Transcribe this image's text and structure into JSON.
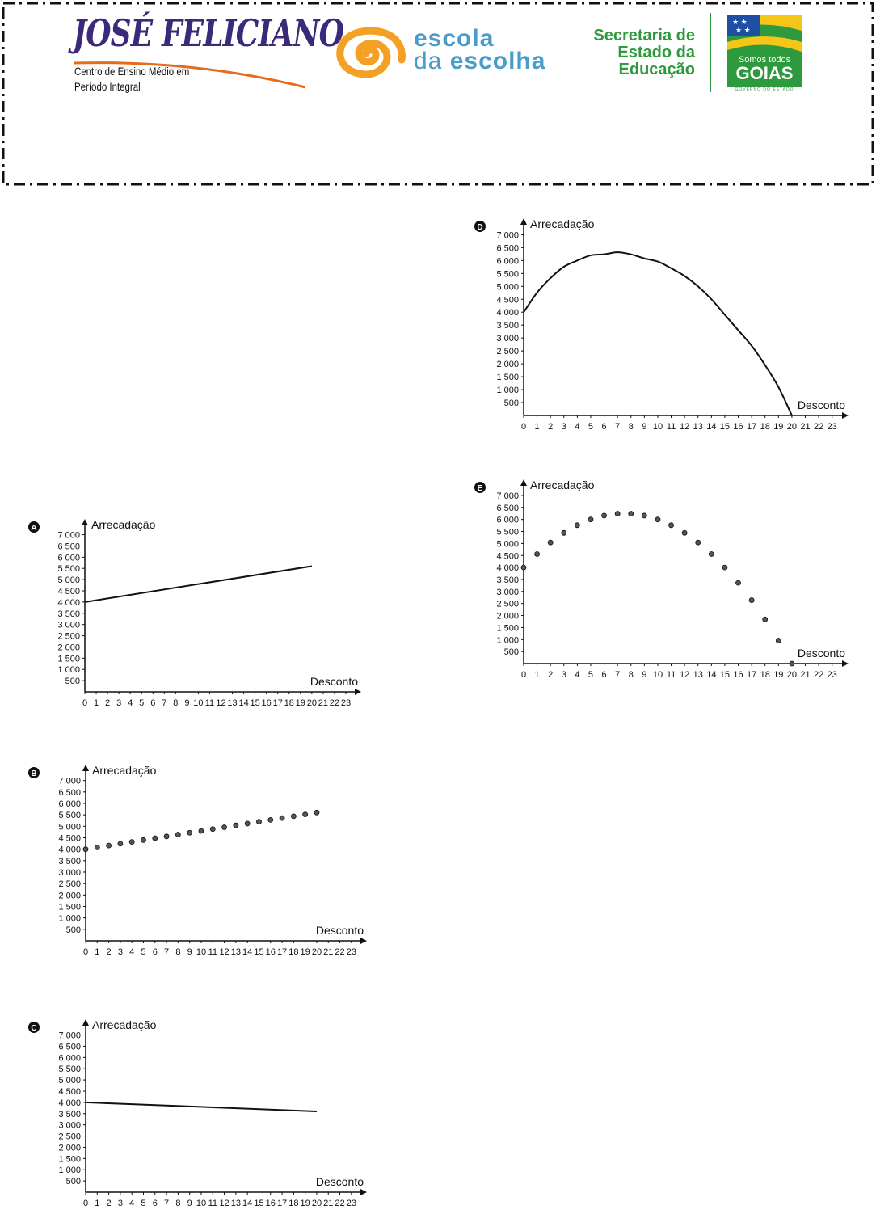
{
  "header": {
    "school_name": "JOSÉ FELICIANO",
    "school_sub_line1": "Centro de Ensino Médio em",
    "school_sub_line2": "Período Integral",
    "program_line1": "escola",
    "program_line2_light": "da",
    "program_line2_bold": "escolha",
    "secretaria_line1": "Secretaria de",
    "secretaria_line2": "Estado da",
    "secretaria_line3": "Educação",
    "goias_line1": "Somos todos",
    "goias_line2": "GOIAS",
    "goias_line3": "GOVERNO DO ESTADO",
    "colors": {
      "school": "#3b2a7a",
      "program": "#4a9dc9",
      "secretaria": "#2e9a3e",
      "goias_blue": "#1f4fa3",
      "goias_yellow": "#f5c518",
      "spiral": "#f3a024"
    }
  },
  "chart_data": [
    {
      "option": "A",
      "type": "line",
      "xlabel": "Desconto",
      "ylabel": "Arrecadação",
      "x_ticks": [
        0,
        1,
        2,
        3,
        4,
        5,
        6,
        7,
        8,
        9,
        10,
        11,
        12,
        13,
        14,
        15,
        16,
        17,
        18,
        19,
        20,
        21,
        22,
        23
      ],
      "y_ticks": [
        500,
        1000,
        1500,
        2000,
        2500,
        3000,
        3500,
        4000,
        4500,
        5000,
        5500,
        6000,
        6500,
        7000
      ],
      "y_tick_labels": [
        "500",
        "1 000",
        "1 500",
        "2 000",
        "2 500",
        "3 000",
        "3 500",
        "4 000",
        "4 500",
        "5 000",
        "5 500",
        "6 000",
        "6 500",
        "7 000"
      ],
      "xlim": [
        0,
        23.5
      ],
      "ylim": [
        0,
        7200
      ],
      "x": [
        0,
        20
      ],
      "y": [
        4000,
        5600
      ]
    },
    {
      "option": "B",
      "type": "scatter",
      "xlabel": "Desconto",
      "ylabel": "Arrecadação",
      "x_ticks": [
        0,
        1,
        2,
        3,
        4,
        5,
        6,
        7,
        8,
        9,
        10,
        11,
        12,
        13,
        14,
        15,
        16,
        17,
        18,
        19,
        20,
        21,
        22,
        23
      ],
      "y_ticks": [
        500,
        1000,
        1500,
        2000,
        2500,
        3000,
        3500,
        4000,
        4500,
        5000,
        5500,
        6000,
        6500,
        7000
      ],
      "y_tick_labels": [
        "500",
        "1 000",
        "1 500",
        "2 000",
        "2 500",
        "3 000",
        "3 500",
        "4 000",
        "4 500",
        "5 000",
        "5 500",
        "6 000",
        "6 500",
        "7 000"
      ],
      "xlim": [
        0,
        23.5
      ],
      "ylim": [
        0,
        7200
      ],
      "x": [
        0,
        1,
        2,
        3,
        4,
        5,
        6,
        7,
        8,
        9,
        10,
        11,
        12,
        13,
        14,
        15,
        16,
        17,
        18,
        19,
        20
      ],
      "y": [
        4000,
        4080,
        4160,
        4240,
        4320,
        4400,
        4480,
        4560,
        4640,
        4720,
        4800,
        4880,
        4960,
        5040,
        5120,
        5200,
        5280,
        5360,
        5440,
        5520,
        5600
      ]
    },
    {
      "option": "C",
      "type": "line",
      "xlabel": "Desconto",
      "ylabel": "Arrecadação",
      "x_ticks": [
        0,
        1,
        2,
        3,
        4,
        5,
        6,
        7,
        8,
        9,
        10,
        11,
        12,
        13,
        14,
        15,
        16,
        17,
        18,
        19,
        20,
        21,
        22,
        23
      ],
      "y_ticks": [
        500,
        1000,
        1500,
        2000,
        2500,
        3000,
        3500,
        4000,
        4500,
        5000,
        5500,
        6000,
        6500,
        7000
      ],
      "y_tick_labels": [
        "500",
        "1 000",
        "1 500",
        "2 000",
        "2 500",
        "3 000",
        "3 500",
        "4 000",
        "4 500",
        "5 000",
        "5 500",
        "6 000",
        "6 500",
        "7 000"
      ],
      "xlim": [
        0,
        23.5
      ],
      "ylim": [
        0,
        7200
      ],
      "x": [
        0,
        20
      ],
      "y": [
        4000,
        3600
      ]
    },
    {
      "option": "D",
      "type": "line",
      "xlabel": "Desconto",
      "ylabel": "Arrecadação",
      "x_ticks": [
        0,
        1,
        2,
        3,
        4,
        5,
        6,
        7,
        8,
        9,
        10,
        11,
        12,
        13,
        14,
        15,
        16,
        17,
        18,
        19,
        20,
        21,
        22,
        23
      ],
      "y_ticks": [
        500,
        1000,
        1500,
        2000,
        2500,
        3000,
        3500,
        4000,
        4500,
        5000,
        5500,
        6000,
        6500,
        7000
      ],
      "y_tick_labels": [
        "500",
        "1 000",
        "1 500",
        "2 000",
        "2 500",
        "3 000",
        "3 500",
        "4 000",
        "4 500",
        "5 000",
        "5 500",
        "6 000",
        "6 500",
        "7 000"
      ],
      "xlim": [
        0,
        23.5
      ],
      "ylim": [
        0,
        7200
      ],
      "x": [
        0,
        1,
        2,
        3,
        4,
        5,
        6,
        7,
        8,
        9,
        10,
        11,
        12,
        13,
        14,
        15,
        16,
        17,
        18,
        19,
        20
      ],
      "y": [
        4000,
        4760,
        5320,
        5760,
        6000,
        6200,
        6240,
        6320,
        6240,
        6080,
        5960,
        5700,
        5400,
        5000,
        4500,
        3900,
        3300,
        2700,
        1950,
        1100,
        0
      ]
    },
    {
      "option": "E",
      "type": "scatter",
      "xlabel": "Desconto",
      "ylabel": "Arrecadação",
      "x_ticks": [
        0,
        1,
        2,
        3,
        4,
        5,
        6,
        7,
        8,
        9,
        10,
        11,
        12,
        13,
        14,
        15,
        16,
        17,
        18,
        19,
        20,
        21,
        22,
        23
      ],
      "y_ticks": [
        500,
        1000,
        1500,
        2000,
        2500,
        3000,
        3500,
        4000,
        4500,
        5000,
        5500,
        6000,
        6500,
        7000
      ],
      "y_tick_labels": [
        "500",
        "1 000",
        "1 500",
        "2 000",
        "2 500",
        "3 000",
        "3 500",
        "4 000",
        "4 500",
        "5 000",
        "5 500",
        "6 000",
        "6 500",
        "7 000"
      ],
      "xlim": [
        0,
        23.5
      ],
      "ylim": [
        0,
        7200
      ],
      "x": [
        0,
        1,
        2,
        3,
        4,
        5,
        6,
        7,
        8,
        9,
        10,
        11,
        12,
        13,
        14,
        15,
        16,
        17,
        18,
        19,
        20
      ],
      "y": [
        4000,
        4560,
        5040,
        5440,
        5760,
        6000,
        6160,
        6240,
        6240,
        6160,
        6000,
        5760,
        5440,
        5040,
        4560,
        4000,
        3360,
        2640,
        1840,
        960,
        0
      ]
    }
  ]
}
